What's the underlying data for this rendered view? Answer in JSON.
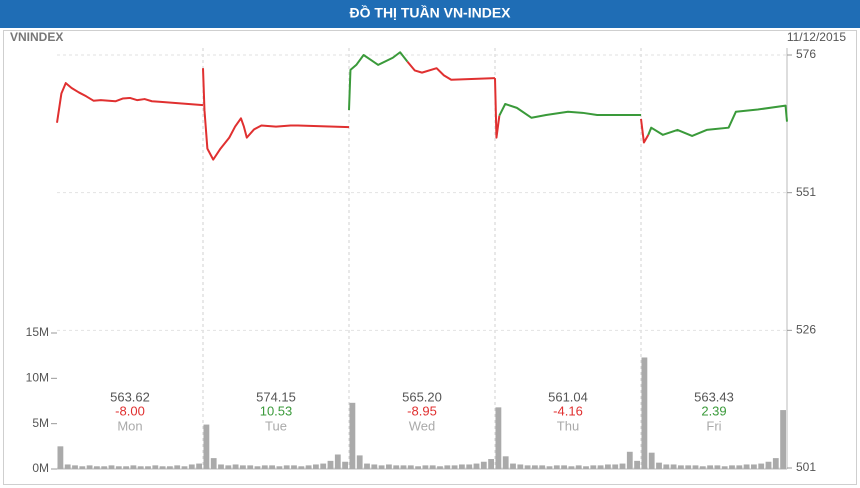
{
  "chart_data": {
    "type": "line",
    "title": "ĐỒ THỊ TUẦN VN-INDEX",
    "symbol": "VNINDEX",
    "date": "11/12/2015",
    "xlim": [
      0,
      5
    ],
    "ylim": [
      501,
      576
    ],
    "yticks": [
      501,
      526,
      551,
      576
    ],
    "grid": true,
    "series": [
      {
        "color": "#e03030",
        "x": [
          0,
          0.03,
          0.06,
          0.1,
          0.15,
          0.2,
          0.25,
          0.3,
          0.4,
          0.45,
          0.5,
          0.55,
          0.6,
          0.65,
          0.7,
          1.0
        ],
        "values": [
          563.7,
          569,
          570.9,
          570,
          569.2,
          568.5,
          567.7,
          567.8,
          567.6,
          568.1,
          568.2,
          567.8,
          568,
          567.6,
          567.5,
          566.9
        ]
      },
      {
        "color": "#e03030",
        "x": [
          1.0,
          1.01,
          1.03,
          1.07,
          1.12,
          1.18,
          1.22,
          1.26,
          1.28,
          1.3,
          1.35,
          1.4,
          1.5,
          1.6,
          1.65,
          2.0
        ],
        "values": [
          573.6,
          566,
          559,
          557,
          559,
          561,
          563,
          564.5,
          563,
          561,
          562.5,
          563.2,
          563,
          563.2,
          563.2,
          562.9
        ]
      },
      {
        "color": "#3a9a3a",
        "x": [
          2.0,
          2.01,
          2.05,
          2.1,
          2.15,
          2.2,
          2.3,
          2.35,
          2.4
        ],
        "values": [
          566,
          573.3,
          574.2,
          576,
          575.1,
          574.2,
          575.5,
          576.5,
          574.8
        ]
      },
      {
        "color": "#e03030",
        "x": [
          2.4,
          2.45,
          2.5,
          2.6,
          2.65,
          2.7,
          3.0
        ],
        "values": [
          574.8,
          573.2,
          572.8,
          573.6,
          572.3,
          571.5,
          571.8
        ]
      },
      {
        "color": "#e03030",
        "x": [
          3.0,
          3.01,
          3.03
        ],
        "values": [
          571.8,
          561,
          565
        ]
      },
      {
        "color": "#3a9a3a",
        "x": [
          3.03,
          3.07,
          3.15,
          3.25,
          3.35,
          3.5,
          3.6,
          3.7,
          4.0
        ],
        "values": [
          565,
          567.1,
          566.4,
          564.6,
          565.1,
          565.7,
          565.5,
          565.1,
          565.1
        ]
      },
      {
        "color": "#e03030",
        "x": [
          4.0,
          4.02,
          4.05
        ],
        "values": [
          564.4,
          560.1,
          561.5
        ]
      },
      {
        "color": "#3a9a3a",
        "x": [
          4.05,
          4.07,
          4.15,
          4.25,
          4.35,
          4.45,
          4.6,
          4.65,
          4.8,
          4.99,
          5.0
        ],
        "values": [
          561.5,
          562.8,
          561.5,
          562.4,
          561.3,
          562.4,
          562.8,
          565.7,
          566.1,
          566.8,
          563.9
        ]
      }
    ],
    "volume": {
      "color": "#aaaaaa",
      "ylim": [
        0,
        15
      ],
      "yticks": [
        {
          "value": 0,
          "label": "0M"
        },
        {
          "value": 5,
          "label": "5M"
        },
        {
          "value": 10,
          "label": "10M"
        },
        {
          "value": 15,
          "label": "15M"
        }
      ],
      "values": [
        2.5,
        0.5,
        0.4,
        0.3,
        0.4,
        0.3,
        0.3,
        0.4,
        0.3,
        0.3,
        0.4,
        0.3,
        0.3,
        0.4,
        0.3,
        0.3,
        0.4,
        0.3,
        0.5,
        0.6,
        4.9,
        1.2,
        0.5,
        0.4,
        0.5,
        0.4,
        0.4,
        0.3,
        0.4,
        0.4,
        0.3,
        0.4,
        0.4,
        0.3,
        0.4,
        0.5,
        0.6,
        0.9,
        1.6,
        0.8,
        7.3,
        1.5,
        0.6,
        0.5,
        0.4,
        0.5,
        0.4,
        0.4,
        0.4,
        0.3,
        0.4,
        0.4,
        0.3,
        0.4,
        0.4,
        0.5,
        0.5,
        0.6,
        0.8,
        1.1,
        6.8,
        1.4,
        0.6,
        0.5,
        0.4,
        0.4,
        0.4,
        0.3,
        0.4,
        0.4,
        0.3,
        0.4,
        0.3,
        0.4,
        0.4,
        0.5,
        0.5,
        0.6,
        1.9,
        0.9,
        12.3,
        1.8,
        0.7,
        0.5,
        0.5,
        0.4,
        0.4,
        0.4,
        0.3,
        0.4,
        0.4,
        0.3,
        0.4,
        0.4,
        0.5,
        0.5,
        0.6,
        0.8,
        1.2,
        6.5
      ]
    },
    "summary": {
      "categories": [
        "Mon",
        "Tue",
        "Wed",
        "Thu",
        "Fri"
      ],
      "closes": [
        563.62,
        574.15,
        565.2,
        561.04,
        563.43
      ],
      "close_labels": [
        "563.62",
        "574.15",
        "565.20",
        "561.04",
        "563.43"
      ],
      "changes": [
        -8,
        10.53,
        -8.95,
        -4.16,
        2.39
      ],
      "change_labels": [
        "-8.00",
        "10.53",
        "-8.95",
        "-4.16",
        "2.39"
      ],
      "up_color": "#3a9a3a",
      "down_color": "#e03030"
    }
  }
}
